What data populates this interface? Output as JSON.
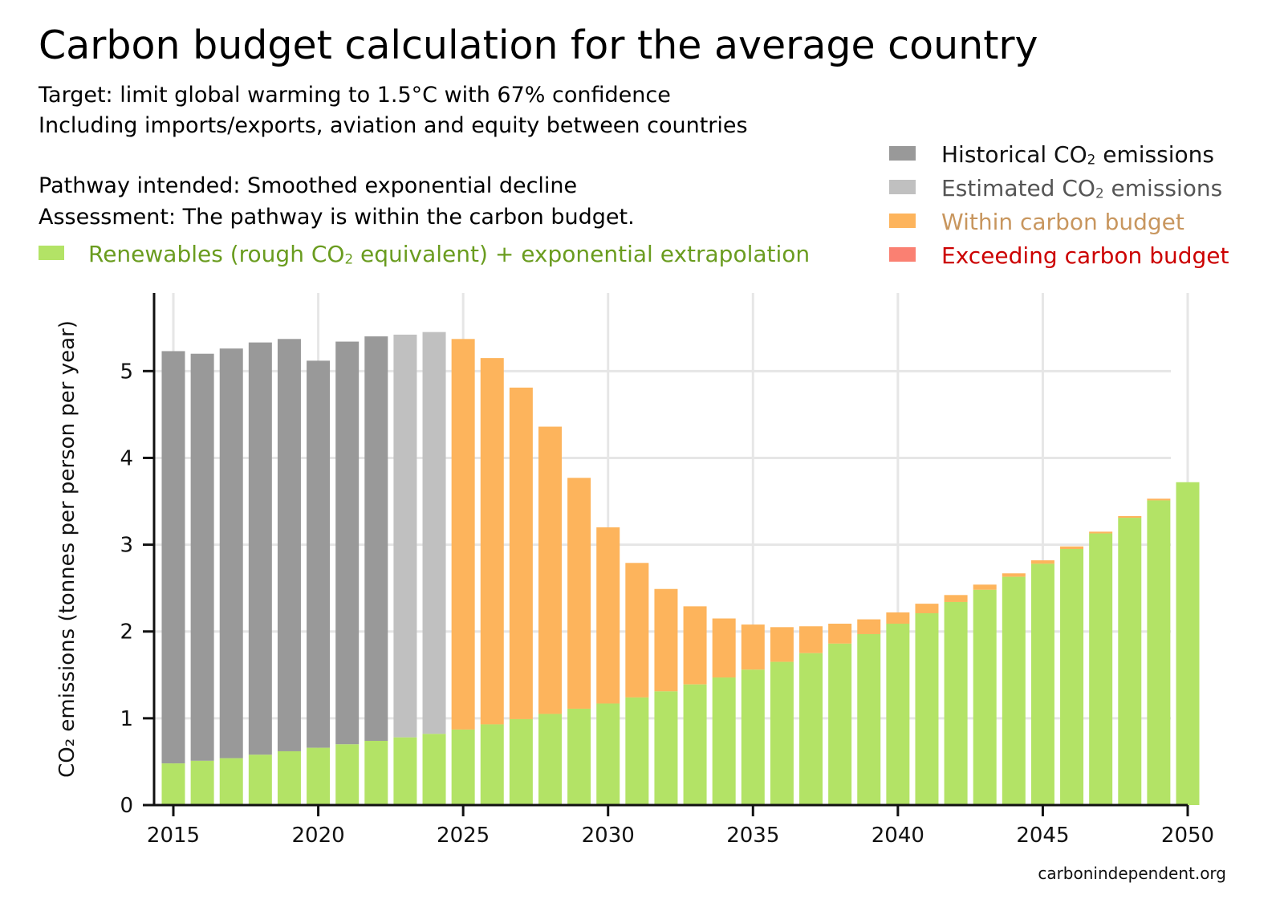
{
  "header": {
    "title": "Carbon budget calculation for the average country",
    "line1": "Target: limit global warming to 1.5°C with 67% confidence",
    "line2": "Including imports/exports, aviation and equity between countries",
    "line3": "Pathway intended: Smoothed exponential decline",
    "line4": "Assessment: The pathway is within the carbon budget."
  },
  "renewables_label": {
    "pre": "Renewables (rough CO",
    "sub": "2",
    "post": " equivalent) + exponential extrapolation"
  },
  "legend": [
    {
      "pre": "Historical CO",
      "sub": "2",
      "post": " emissions",
      "color": "#999999",
      "text_color": "#111111"
    },
    {
      "pre": "Estimated CO",
      "sub": "2",
      "post": " emissions",
      "color": "#c0c0c0",
      "text_color": "#555555"
    },
    {
      "pre": "Within carbon budget",
      "sub": "",
      "post": "",
      "color": "#fdb45c",
      "text_color": "#c8965e"
    },
    {
      "pre": "Exceeding carbon budget",
      "sub": "",
      "post": "",
      "color": "#fa8072",
      "text_color": "#cc0000"
    }
  ],
  "credit": "carbonindependent.org",
  "chart_data": {
    "type": "bar",
    "stacked": true,
    "ylabel": "CO₂ emissions (tonnes per person per year)",
    "ylim": [
      0,
      5.9
    ],
    "yticks": [
      0,
      1,
      2,
      3,
      4,
      5
    ],
    "xticks": [
      2015,
      2020,
      2025,
      2030,
      2035,
      2040,
      2045,
      2050
    ],
    "grid": true,
    "colors": {
      "renewables": "#b3e366",
      "historical": "#999999",
      "estimated": "#c0c0c0",
      "within": "#fdb45c",
      "exceeding": "#fa8072"
    },
    "years": [
      2015,
      2016,
      2017,
      2018,
      2019,
      2020,
      2021,
      2022,
      2023,
      2024,
      2025,
      2026,
      2027,
      2028,
      2029,
      2030,
      2031,
      2032,
      2033,
      2034,
      2035,
      2036,
      2037,
      2038,
      2039,
      2040,
      2041,
      2042,
      2043,
      2044,
      2045,
      2046,
      2047,
      2048,
      2049,
      2050
    ],
    "renewables": [
      0.48,
      0.51,
      0.54,
      0.58,
      0.62,
      0.66,
      0.7,
      0.74,
      0.78,
      0.82,
      0.87,
      0.93,
      0.99,
      1.05,
      1.11,
      1.17,
      1.24,
      1.31,
      1.39,
      1.47,
      1.56,
      1.65,
      1.75,
      1.86,
      1.97,
      2.09,
      2.21,
      2.34,
      2.48,
      2.63,
      2.78,
      2.95,
      3.13,
      3.31,
      3.51,
      3.72
    ],
    "totals": [
      5.23,
      5.2,
      5.26,
      5.33,
      5.37,
      5.12,
      5.34,
      5.4,
      5.42,
      5.45,
      5.37,
      5.15,
      4.81,
      4.36,
      3.77,
      3.2,
      2.79,
      2.49,
      2.29,
      2.15,
      2.08,
      2.05,
      2.06,
      2.09,
      2.14,
      2.22,
      2.32,
      2.42,
      2.54,
      2.67,
      2.82,
      2.98,
      3.15,
      3.33,
      3.53,
      3.72
    ],
    "category": [
      "historical",
      "historical",
      "historical",
      "historical",
      "historical",
      "historical",
      "historical",
      "historical",
      "estimated",
      "estimated",
      "within",
      "within",
      "within",
      "within",
      "within",
      "within",
      "within",
      "within",
      "within",
      "within",
      "within",
      "within",
      "within",
      "within",
      "within",
      "within",
      "within",
      "within",
      "within",
      "within",
      "within",
      "within",
      "within",
      "within",
      "within",
      "within"
    ]
  }
}
